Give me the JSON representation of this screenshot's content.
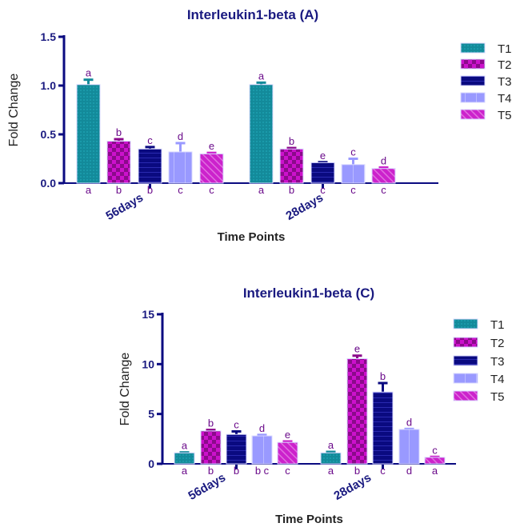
{
  "chart_data": [
    {
      "type": "bar",
      "title": "Interleukin1-beta (A)",
      "xlabel": "Time Points",
      "ylabel": "Fold Change",
      "ylim": [
        0,
        1.5
      ],
      "yticks": [
        "0.0",
        "0.5",
        "1.0",
        "1.5"
      ],
      "ytick_values": [
        0,
        0.5,
        1,
        1.5
      ],
      "categories": [
        "56days",
        "28days"
      ],
      "legend_placement": "right",
      "grid": false,
      "series": [
        {
          "name": "T1",
          "color": "#138a9a",
          "values": [
            1.01,
            1.01
          ],
          "errors": [
            0.05,
            0.02
          ],
          "letters_top": [
            "a",
            "a"
          ],
          "letters_bottom": [
            "a",
            "a"
          ]
        },
        {
          "name": "T2",
          "color": "#8b0a8b",
          "values": [
            0.43,
            0.35
          ],
          "errors": [
            0.02,
            0.01
          ],
          "letters_top": [
            "b",
            "b"
          ],
          "letters_bottom": [
            "b",
            "b"
          ]
        },
        {
          "name": "T3",
          "color": "#0a0a80",
          "values": [
            0.35,
            0.21
          ],
          "errors": [
            0.02,
            0.005
          ],
          "letters_top": [
            "c",
            "e"
          ],
          "letters_bottom": [
            "b",
            "c"
          ]
        },
        {
          "name": "T4",
          "color": "#9999ff",
          "values": [
            0.32,
            0.19
          ],
          "errors": [
            0.09,
            0.06
          ],
          "letters_top": [
            "d",
            "c"
          ],
          "letters_bottom": [
            "c",
            "c"
          ]
        },
        {
          "name": "T5",
          "color": "#cc22cc",
          "values": [
            0.3,
            0.15
          ],
          "errors": [
            0.01,
            0.01
          ],
          "letters_top": [
            "e",
            "d"
          ],
          "letters_bottom": [
            "c",
            "c"
          ]
        }
      ]
    },
    {
      "type": "bar",
      "title": "Interleukin1-beta (C)",
      "xlabel": "Time Points",
      "ylabel": "Fold Change",
      "ylim": [
        0,
        15
      ],
      "yticks": [
        "0",
        "5",
        "10",
        "15"
      ],
      "ytick_values": [
        0,
        5,
        10,
        15
      ],
      "categories": [
        "56days",
        "28days"
      ],
      "legend_placement": "right",
      "grid": false,
      "series": [
        {
          "name": "T1",
          "color": "#138a9a",
          "values": [
            1.1,
            1.1
          ],
          "errors": [
            0.05,
            0.1
          ],
          "letters_top": [
            "a",
            "a"
          ],
          "letters_bottom": [
            "a",
            "a"
          ]
        },
        {
          "name": "T2",
          "color": "#8b0a8b",
          "values": [
            3.3,
            10.55
          ],
          "errors": [
            0.1,
            0.3
          ],
          "letters_top": [
            "b",
            "e"
          ],
          "letters_bottom": [
            "b",
            "b"
          ]
        },
        {
          "name": "T3",
          "color": "#0a0a80",
          "values": [
            2.95,
            7.2
          ],
          "errors": [
            0.3,
            0.9
          ],
          "letters_top": [
            "c",
            "b"
          ],
          "letters_bottom": [
            "b",
            "c"
          ]
        },
        {
          "name": "T4",
          "color": "#9999ff",
          "values": [
            2.8,
            3.45
          ],
          "errors": [
            0.1,
            0.05
          ],
          "letters_top": [
            "d",
            "d"
          ],
          "letters_bottom": [
            "b c",
            "d"
          ]
        },
        {
          "name": "T5",
          "color": "#cc22cc",
          "values": [
            2.15,
            0.65
          ],
          "errors": [
            0.1,
            0.05
          ],
          "letters_top": [
            "e",
            "c"
          ],
          "letters_bottom": [
            "c",
            "a"
          ]
        }
      ]
    }
  ]
}
